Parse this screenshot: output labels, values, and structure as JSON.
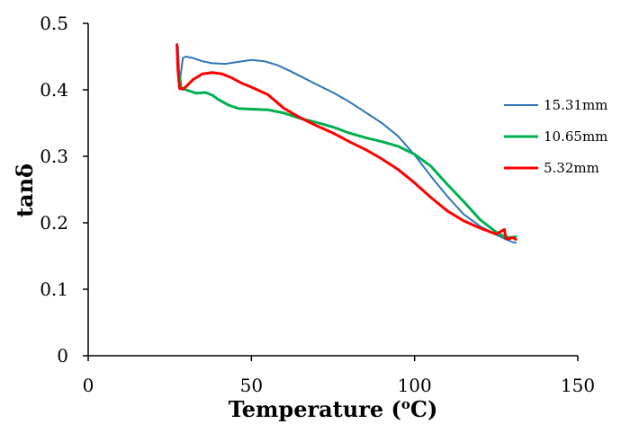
{
  "chart_data": {
    "type": "line",
    "xlabel": "Temperature (°C)",
    "ylabel": "tanδ",
    "xlim": [
      0,
      150
    ],
    "ylim": [
      0,
      0.5
    ],
    "xticks": [
      0,
      50,
      100,
      150
    ],
    "yticks": [
      0,
      0.1,
      0.2,
      0.3,
      0.4,
      0.5
    ],
    "xtick_labels": [
      "0",
      "50",
      "100",
      "150"
    ],
    "ytick_labels": [
      "0",
      "0.1",
      "0.2",
      "0.3",
      "0.4",
      "0.5"
    ],
    "grid": false,
    "legend_position": "right",
    "series": [
      {
        "name": "15.31mm",
        "color": "#2e75b6",
        "x": [
          27.5,
          28,
          29,
          30,
          32,
          35,
          38,
          42,
          46,
          50,
          54,
          58,
          62,
          66,
          70,
          75,
          80,
          85,
          90,
          95,
          100,
          105,
          110,
          115,
          120,
          125,
          128,
          130,
          131
        ],
        "y": [
          0.465,
          0.41,
          0.448,
          0.45,
          0.448,
          0.443,
          0.44,
          0.439,
          0.442,
          0.445,
          0.443,
          0.437,
          0.428,
          0.418,
          0.408,
          0.396,
          0.382,
          0.366,
          0.35,
          0.33,
          0.302,
          0.27,
          0.24,
          0.213,
          0.195,
          0.182,
          0.175,
          0.171,
          0.17
        ]
      },
      {
        "name": "10.65mm",
        "color": "#00b050",
        "x": [
          28,
          28.5,
          30,
          33,
          36,
          38,
          40,
          43,
          46,
          50,
          55,
          60,
          65,
          70,
          75,
          80,
          85,
          90,
          95,
          100,
          105,
          110,
          115,
          120,
          125,
          128,
          130,
          131
        ],
        "y": [
          0.42,
          0.403,
          0.4,
          0.395,
          0.396,
          0.392,
          0.385,
          0.377,
          0.372,
          0.371,
          0.37,
          0.365,
          0.357,
          0.351,
          0.344,
          0.335,
          0.328,
          0.322,
          0.315,
          0.303,
          0.285,
          0.258,
          0.232,
          0.205,
          0.186,
          0.178,
          0.178,
          0.179
        ]
      },
      {
        "name": "5.32mm",
        "color": "#ff0000",
        "x": [
          27.2,
          27.5,
          28,
          29,
          30,
          32,
          35,
          38,
          41,
          44,
          47,
          50,
          55,
          60,
          65,
          70,
          75,
          80,
          85,
          90,
          95,
          100,
          105,
          110,
          115,
          120,
          125,
          127.5,
          128,
          129,
          130,
          131
        ],
        "y": [
          0.468,
          0.43,
          0.402,
          0.401,
          0.405,
          0.415,
          0.424,
          0.426,
          0.424,
          0.418,
          0.41,
          0.404,
          0.393,
          0.372,
          0.358,
          0.346,
          0.335,
          0.322,
          0.31,
          0.296,
          0.28,
          0.26,
          0.238,
          0.218,
          0.203,
          0.192,
          0.183,
          0.19,
          0.176,
          0.176,
          0.178,
          0.175
        ]
      }
    ]
  }
}
